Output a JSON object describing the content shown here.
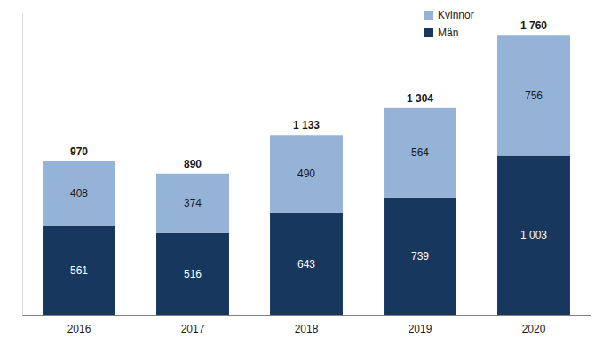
{
  "chart_data": {
    "type": "bar",
    "stacked": true,
    "data_labels": true,
    "tick_labels": "x",
    "legend": "top-right",
    "categories": [
      "2016",
      "2017",
      "2018",
      "2019",
      "2020"
    ],
    "series": [
      {
        "name": "Män",
        "color": "#17375e",
        "values": [
          561,
          516,
          643,
          739,
          1003
        ],
        "value_labels": [
          "561",
          "516",
          "643",
          "739",
          "1 003"
        ]
      },
      {
        "name": "Kvinnor",
        "color": "#95b3d7",
        "values": [
          408,
          374,
          490,
          564,
          756
        ]
      }
    ],
    "totals": {
      "values": [
        970,
        890,
        1133,
        1304,
        1760
      ],
      "value_labels": [
        "970",
        "890",
        "1 133",
        "1 304",
        "1 760"
      ]
    },
    "ylim": [
      0,
      1900
    ]
  }
}
